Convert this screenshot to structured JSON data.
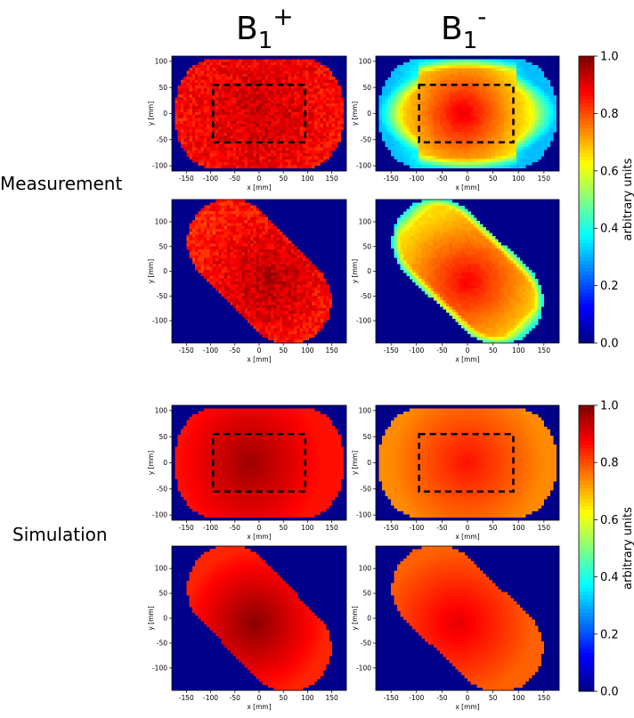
{
  "columns": {
    "b1_plus": {
      "base": "B",
      "sub": "1",
      "sup": "+"
    },
    "b1_minus": {
      "base": "B",
      "sub": "1",
      "sup": "-"
    }
  },
  "rows": {
    "measurement": "Measurement",
    "simulation": "Simulation"
  },
  "colors": {
    "background_field": "#00008b",
    "roi_box": "#000000"
  },
  "chart_data": [
    {
      "type": "heatmap",
      "id": "meas-b1plus-axial",
      "row": "Measurement",
      "column": "B1+",
      "xlabel": "x [mm]",
      "ylabel": "y [mm]",
      "xlim": [
        -180,
        180
      ],
      "ylim": [
        -110,
        110
      ],
      "xticks": [
        -150,
        -100,
        -50,
        0,
        50,
        100,
        150
      ],
      "yticks": [
        -100,
        -50,
        0,
        50,
        100
      ],
      "shape": "axial",
      "center_value": 0.93,
      "edge_value": 0.87,
      "noise": 0.05,
      "hotspot": [
        0,
        0
      ],
      "roi": {
        "x": [
          -95,
          95
        ],
        "y": [
          -55,
          55
        ]
      }
    },
    {
      "type": "heatmap",
      "id": "meas-b1minus-axial",
      "row": "Measurement",
      "column": "B1-",
      "xlabel": "x [mm]",
      "ylabel": "y [mm]",
      "xlim": [
        -180,
        180
      ],
      "ylim": [
        -110,
        110
      ],
      "xticks": [
        -150,
        -100,
        -50,
        0,
        50,
        100,
        150
      ],
      "yticks": [
        -100,
        -50,
        0,
        50,
        100
      ],
      "shape": "axial",
      "center_value": 0.9,
      "edge_value": 0.6,
      "noise": 0.01,
      "hotspot": [
        -10,
        0
      ],
      "roi": {
        "x": [
          -95,
          90
        ],
        "y": [
          -55,
          55
        ]
      }
    },
    {
      "type": "heatmap",
      "id": "meas-b1plus-oblique",
      "row": "Measurement",
      "column": "B1+",
      "xlabel": "x [mm]",
      "ylabel": "y [mm]",
      "xlim": [
        -180,
        180
      ],
      "ylim": [
        -145,
        145
      ],
      "xticks": [
        -150,
        -100,
        -50,
        0,
        50,
        100,
        150
      ],
      "yticks": [
        -100,
        -50,
        0,
        50,
        100
      ],
      "shape": "oblique",
      "center_value": 0.95,
      "edge_value": 0.85,
      "noise": 0.05,
      "hotspot": [
        20,
        -20
      ]
    },
    {
      "type": "heatmap",
      "id": "meas-b1minus-oblique",
      "row": "Measurement",
      "column": "B1-",
      "xlabel": "x [mm]",
      "ylabel": "y [mm]",
      "xlim": [
        -180,
        180
      ],
      "ylim": [
        -145,
        145
      ],
      "xticks": [
        -150,
        -100,
        -50,
        0,
        50,
        100,
        150
      ],
      "yticks": [
        -100,
        -50,
        0,
        50,
        100
      ],
      "shape": "oblique",
      "center_value": 0.88,
      "edge_value": 0.66,
      "noise": 0.01,
      "hotspot": [
        0,
        -20
      ]
    },
    {
      "type": "heatmap",
      "id": "sim-b1plus-axial",
      "row": "Simulation",
      "column": "B1+",
      "xlabel": "x [mm]",
      "ylabel": "y [mm]",
      "xlim": [
        -180,
        180
      ],
      "ylim": [
        -110,
        110
      ],
      "xticks": [
        -150,
        -100,
        -50,
        0,
        50,
        100,
        150
      ],
      "yticks": [
        -100,
        -50,
        0,
        50,
        100
      ],
      "shape": "axial",
      "center_value": 0.97,
      "edge_value": 0.86,
      "noise": 0.0,
      "hotspot": [
        -20,
        0
      ],
      "roi": {
        "x": [
          -95,
          95
        ],
        "y": [
          -55,
          55
        ]
      }
    },
    {
      "type": "heatmap",
      "id": "sim-b1minus-axial",
      "row": "Simulation",
      "column": "B1-",
      "xlabel": "x [mm]",
      "ylabel": "y [mm]",
      "xlim": [
        -180,
        180
      ],
      "ylim": [
        -110,
        110
      ],
      "xticks": [
        -150,
        -100,
        -50,
        0,
        50,
        100,
        150
      ],
      "yticks": [
        -100,
        -50,
        0,
        50,
        100
      ],
      "shape": "axial",
      "center_value": 0.86,
      "edge_value": 0.74,
      "noise": 0.0,
      "hotspot": [
        0,
        0
      ],
      "roi": {
        "x": [
          -95,
          90
        ],
        "y": [
          -55,
          55
        ]
      }
    },
    {
      "type": "heatmap",
      "id": "sim-b1plus-oblique",
      "row": "Simulation",
      "column": "B1+",
      "xlabel": "x [mm]",
      "ylabel": "y [mm]",
      "xlim": [
        -180,
        180
      ],
      "ylim": [
        -145,
        145
      ],
      "xticks": [
        -150,
        -100,
        -50,
        0,
        50,
        100,
        150
      ],
      "yticks": [
        -100,
        -50,
        0,
        50,
        100
      ],
      "shape": "oblique",
      "center_value": 0.99,
      "edge_value": 0.84,
      "noise": 0.0,
      "hotspot": [
        -10,
        -10
      ]
    },
    {
      "type": "heatmap",
      "id": "sim-b1minus-oblique",
      "row": "Simulation",
      "column": "B1-",
      "xlabel": "x [mm]",
      "ylabel": "y [mm]",
      "xlim": [
        -180,
        180
      ],
      "ylim": [
        -145,
        145
      ],
      "xticks": [
        -150,
        -100,
        -50,
        0,
        50,
        100,
        150
      ],
      "yticks": [
        -100,
        -50,
        0,
        50,
        100
      ],
      "shape": "oblique",
      "center_value": 0.9,
      "edge_value": 0.78,
      "noise": 0.0,
      "hotspot": [
        -20,
        -10
      ]
    }
  ],
  "colorbars": [
    {
      "id": "cb-measurement",
      "colormap": "jet",
      "range": [
        0.0,
        1.0
      ],
      "ticks": [
        "0.0",
        "0.2",
        "0.4",
        "0.6",
        "0.8",
        "1.0"
      ],
      "label": "arbitrary units"
    },
    {
      "id": "cb-simulation",
      "colormap": "jet",
      "range": [
        0.0,
        1.0
      ],
      "ticks": [
        "0.0",
        "0.2",
        "0.4",
        "0.6",
        "0.8",
        "1.0"
      ],
      "label": "arbitrary units"
    }
  ]
}
